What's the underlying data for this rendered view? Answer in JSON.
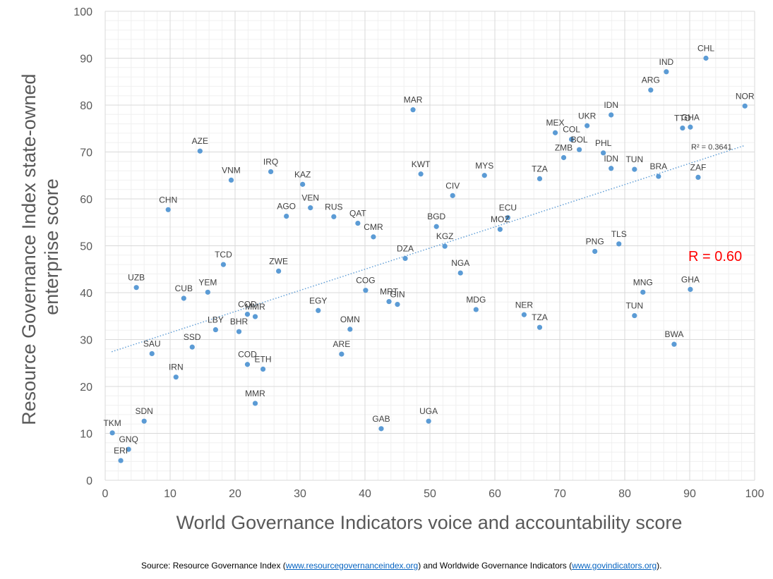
{
  "chart_data": {
    "type": "scatter",
    "xlabel": "World Governance Indicators voice and accountability score",
    "ylabel_lines": [
      "Resource Governance Index state-owned",
      "enterprise score"
    ],
    "xlim": [
      0,
      100
    ],
    "ylim": [
      0,
      100
    ],
    "xticks": [
      0,
      10,
      20,
      30,
      40,
      50,
      60,
      70,
      80,
      90,
      100
    ],
    "yticks": [
      0,
      10,
      20,
      30,
      40,
      50,
      60,
      70,
      80,
      90,
      100
    ],
    "grid": true,
    "point_color": "#5b9bd5",
    "trendline": {
      "type": "linear",
      "x": [
        1,
        98.5
      ],
      "y": [
        27.4,
        71.4
      ],
      "color": "#5b9bd5",
      "r_squared_label": "R² = 0.3641"
    },
    "r_annotation": {
      "text": "R = 0.60",
      "color": "#ff0000"
    },
    "points": [
      {
        "label": "TKM",
        "x": 1.1,
        "y": 10.1
      },
      {
        "label": "GNQ",
        "x": 3.6,
        "y": 6.6
      },
      {
        "label": "ERI",
        "x": 2.4,
        "y": 4.2
      },
      {
        "label": "UZB",
        "x": 4.8,
        "y": 41.1
      },
      {
        "label": "SDN",
        "x": 6.0,
        "y": 12.6
      },
      {
        "label": "SAU",
        "x": 7.2,
        "y": 27.0
      },
      {
        "label": "CHN",
        "x": 9.7,
        "y": 57.7
      },
      {
        "label": "IRN",
        "x": 10.9,
        "y": 22.0
      },
      {
        "label": "CUB",
        "x": 12.1,
        "y": 38.8
      },
      {
        "label": "SSD",
        "x": 13.4,
        "y": 28.4
      },
      {
        "label": "AZE",
        "x": 14.6,
        "y": 70.2
      },
      {
        "label": "YEM",
        "x": 15.8,
        "y": 40.1
      },
      {
        "label": "LBY",
        "x": 17.0,
        "y": 32.1
      },
      {
        "label": "TCD",
        "x": 18.2,
        "y": 46.0
      },
      {
        "label": "VNM",
        "x": 19.4,
        "y": 64.0
      },
      {
        "label": "BHR",
        "x": 20.6,
        "y": 31.7
      },
      {
        "label": "COD",
        "x": 21.9,
        "y": 35.4
      },
      {
        "label": "MMR",
        "x": 23.1,
        "y": 34.9
      },
      {
        "label": "COD",
        "x": 21.9,
        "y": 24.7
      },
      {
        "label": "ETH",
        "x": 24.3,
        "y": 23.7
      },
      {
        "label": "MMR",
        "x": 23.1,
        "y": 16.4
      },
      {
        "label": "IRQ",
        "x": 25.5,
        "y": 65.8
      },
      {
        "label": "ZWE",
        "x": 26.7,
        "y": 44.6
      },
      {
        "label": "AGO",
        "x": 27.9,
        "y": 56.3
      },
      {
        "label": "KAZ",
        "x": 30.4,
        "y": 63.1
      },
      {
        "label": "VEN",
        "x": 31.6,
        "y": 58.1
      },
      {
        "label": "EGY",
        "x": 32.8,
        "y": 36.2
      },
      {
        "label": "RUS",
        "x": 35.2,
        "y": 56.2
      },
      {
        "label": "ARE",
        "x": 36.4,
        "y": 26.9
      },
      {
        "label": "OMN",
        "x": 37.7,
        "y": 32.2
      },
      {
        "label": "QAT",
        "x": 38.9,
        "y": 54.8
      },
      {
        "label": "COG",
        "x": 40.1,
        "y": 40.5
      },
      {
        "label": "CMR",
        "x": 41.3,
        "y": 51.9
      },
      {
        "label": "GAB",
        "x": 42.5,
        "y": 11.0
      },
      {
        "label": "MRT",
        "x": 43.7,
        "y": 38.1
      },
      {
        "label": "GIN",
        "x": 45.0,
        "y": 37.5
      },
      {
        "label": "DZA",
        "x": 46.2,
        "y": 47.3
      },
      {
        "label": "MAR",
        "x": 47.4,
        "y": 79.0
      },
      {
        "label": "KWT",
        "x": 48.6,
        "y": 65.3
      },
      {
        "label": "UGA",
        "x": 49.8,
        "y": 12.6
      },
      {
        "label": "BGD",
        "x": 51.0,
        "y": 54.1
      },
      {
        "label": "KGZ",
        "x": 52.3,
        "y": 49.9
      },
      {
        "label": "CIV",
        "x": 53.5,
        "y": 60.7
      },
      {
        "label": "NGA",
        "x": 54.7,
        "y": 44.2
      },
      {
        "label": "MDG",
        "x": 57.1,
        "y": 36.4
      },
      {
        "label": "MYS",
        "x": 58.4,
        "y": 65.0
      },
      {
        "label": "MOZ",
        "x": 60.8,
        "y": 53.5
      },
      {
        "label": "ECU",
        "x": 62.0,
        "y": 56.0
      },
      {
        "label": "NER",
        "x": 64.5,
        "y": 35.3
      },
      {
        "label": "TZA",
        "x": 66.9,
        "y": 64.3
      },
      {
        "label": "TZA",
        "x": 66.9,
        "y": 32.6
      },
      {
        "label": "MEX",
        "x": 69.3,
        "y": 74.1
      },
      {
        "label": "ZMB",
        "x": 70.6,
        "y": 68.8
      },
      {
        "label": "COL",
        "x": 71.8,
        "y": 72.7
      },
      {
        "label": "BOL",
        "x": 73.0,
        "y": 70.5
      },
      {
        "label": "UKR",
        "x": 74.2,
        "y": 75.6
      },
      {
        "label": "PNG",
        "x": 75.4,
        "y": 48.8
      },
      {
        "label": "PHL",
        "x": 76.7,
        "y": 69.8
      },
      {
        "label": "IDN",
        "x": 77.9,
        "y": 77.9
      },
      {
        "label": "IDN",
        "x": 77.9,
        "y": 66.5
      },
      {
        "label": "TLS",
        "x": 79.1,
        "y": 50.4
      },
      {
        "label": "TUN",
        "x": 81.5,
        "y": 66.3
      },
      {
        "label": "TUN",
        "x": 81.5,
        "y": 35.1
      },
      {
        "label": "MNG",
        "x": 82.8,
        "y": 40.1
      },
      {
        "label": "ARG",
        "x": 84.0,
        "y": 83.2
      },
      {
        "label": "BRA",
        "x": 85.2,
        "y": 64.8
      },
      {
        "label": "IND",
        "x": 86.4,
        "y": 87.1
      },
      {
        "label": "BWA",
        "x": 87.6,
        "y": 29.0
      },
      {
        "label": "TTO",
        "x": 88.9,
        "y": 75.1
      },
      {
        "label": "GHA",
        "x": 90.1,
        "y": 75.3
      },
      {
        "label": "GHA",
        "x": 90.1,
        "y": 40.7
      },
      {
        "label": "ZAF",
        "x": 91.3,
        "y": 64.6
      },
      {
        "label": "CHL",
        "x": 92.5,
        "y": 90.0
      },
      {
        "label": "NOR",
        "x": 98.5,
        "y": 79.8
      }
    ]
  },
  "source": {
    "prefix": "Source: Resource Governance Index (",
    "link1": "www.resourcegovernanceindex.org",
    "middle": ") and Worldwide Governance Indicators (",
    "link2": "www.govindicators.org",
    "suffix": ")."
  }
}
